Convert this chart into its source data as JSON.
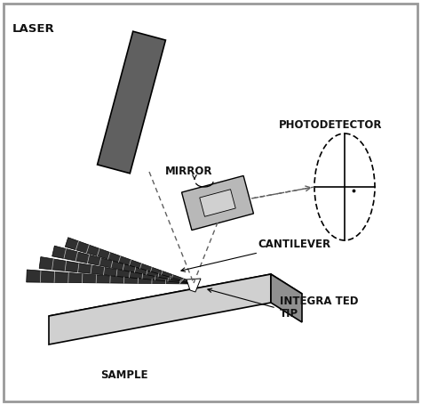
{
  "bg_color": "#ffffff",
  "border_color": "#999999",
  "label_laser": "LASER",
  "label_mirror": "MIRROR",
  "label_photodetector": "PHOTODETECTOR",
  "label_cantilever": "CANTILEVER",
  "label_sample": "SAMPLE",
  "label_tip1": "INTEGRA TED",
  "label_tip2": "TIP",
  "dark_gray": "#606060",
  "mid_gray": "#909090",
  "light_gray": "#b8b8b8",
  "lighter_gray": "#d0d0d0",
  "text_color": "#111111",
  "font_size_labels": 8.5,
  "font_size_large": 9.5
}
